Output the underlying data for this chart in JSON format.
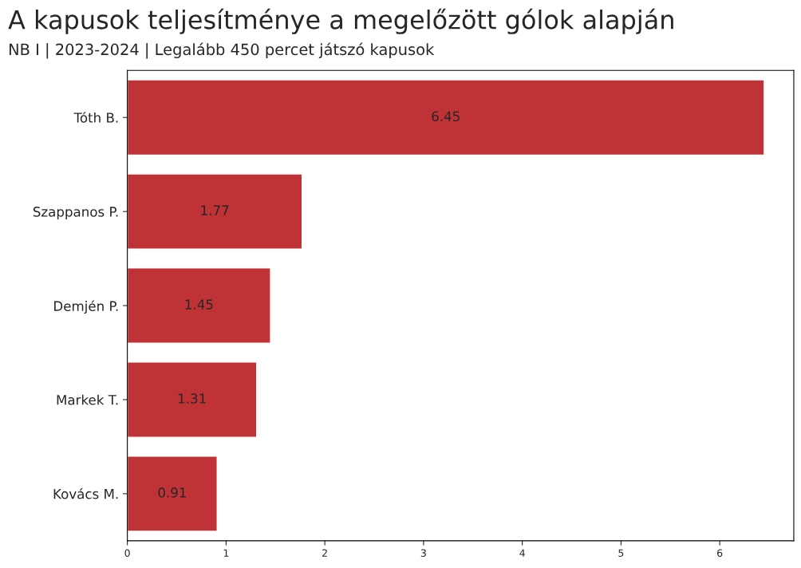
{
  "chart_data": {
    "type": "bar",
    "orientation": "horizontal",
    "title": "A kapusok teljesítménye a megelőzött gólok alapján",
    "subtitle": "NB I | 2023-2024 | Legalább 450 percet játszó kapusok",
    "categories": [
      "Tóth B.",
      "Szappanos P.",
      "Demjén P.",
      "Markek T.",
      "Kovács M."
    ],
    "values": [
      6.45,
      1.77,
      1.45,
      1.31,
      0.91
    ],
    "color": "#bf3336",
    "xlim": [
      0,
      6.75
    ],
    "xticks": [
      0,
      1,
      2,
      3,
      4,
      5,
      6
    ],
    "data_labels": true,
    "grid": false,
    "legend": false
  }
}
